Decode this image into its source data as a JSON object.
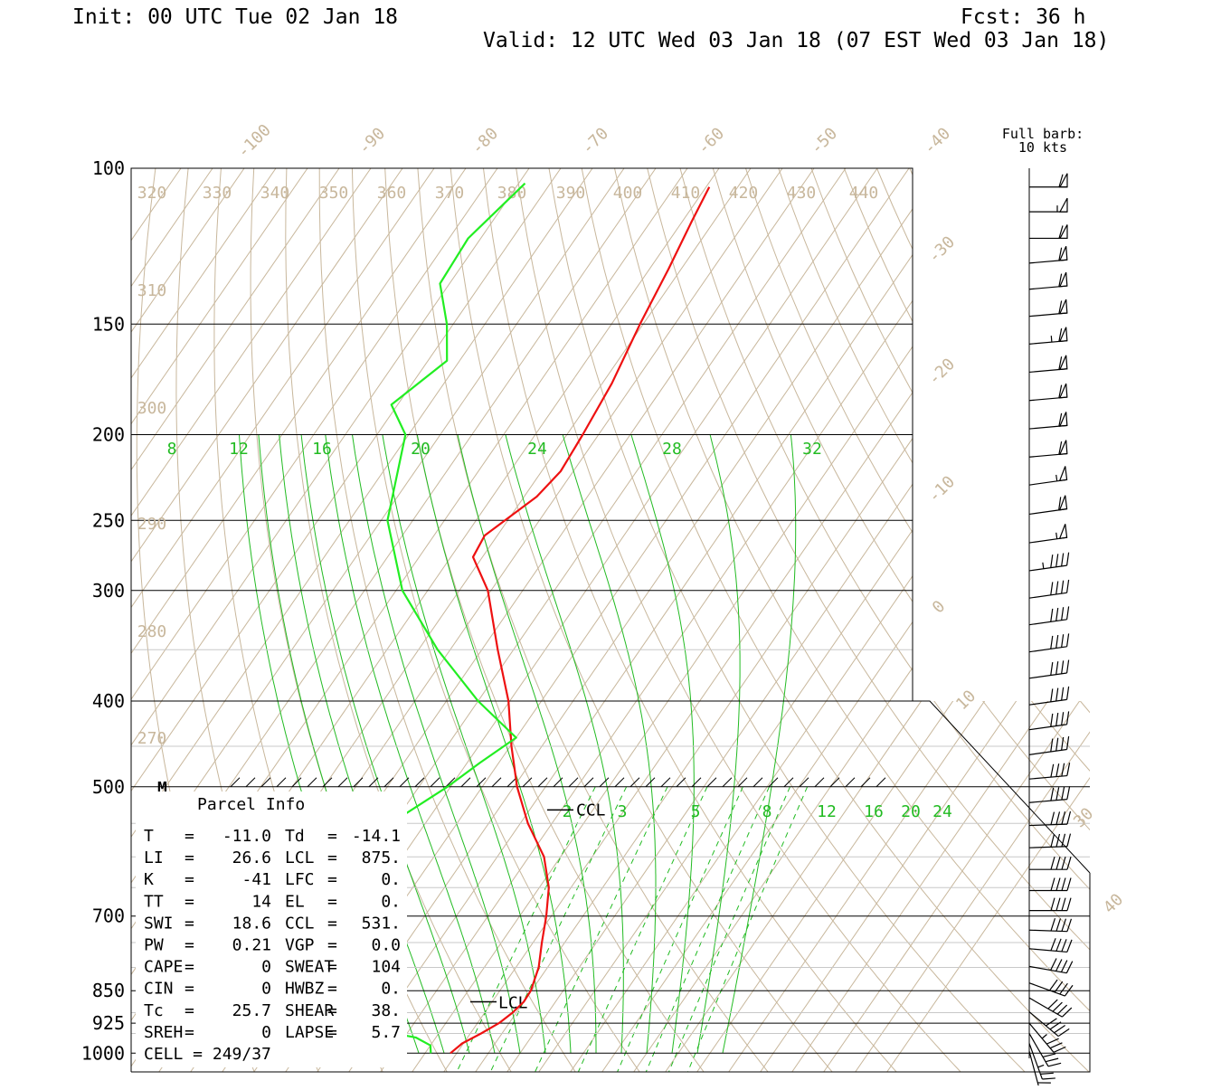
{
  "header": {
    "init": "Init: 00 UTC Tue 02 Jan 18",
    "fcst": "Fcst:   36 h",
    "valid": "Valid: 12 UTC Wed 03 Jan 18 (07 EST Wed 03 Jan 18)"
  },
  "barb_key": {
    "line1": "Full barb:",
    "line2": "10 kts"
  },
  "chart_data": {
    "type": "line",
    "title": "",
    "xlabel": "",
    "ylabel": "",
    "pressure_ticks": [
      {
        "p": 100,
        "label": "100"
      },
      {
        "p": 150,
        "label": "150"
      },
      {
        "p": 200,
        "label": "200"
      },
      {
        "p": 250,
        "label": "250"
      },
      {
        "p": 300,
        "label": "300"
      },
      {
        "p": 400,
        "label": "400"
      },
      {
        "p": 500,
        "label": "500"
      },
      {
        "p": 700,
        "label": "700"
      },
      {
        "p": 850,
        "label": "850"
      },
      {
        "p": 925,
        "label": "925"
      },
      {
        "p": 1000,
        "label": "1000"
      }
    ],
    "ylim_hPa": [
      1000,
      100
    ],
    "y_scale": "log",
    "isotherm_labels": [
      "-100",
      "-90",
      "-80",
      "-70",
      "-60",
      "-50",
      "-40",
      "-30",
      "-20",
      "-10",
      "0",
      "10",
      "30",
      "40"
    ],
    "theta_labels": [
      "320",
      "330",
      "340",
      "350",
      "360",
      "370",
      "380",
      "390",
      "400",
      "410",
      "420",
      "430",
      "440",
      "310",
      "300",
      "290",
      "280",
      "270"
    ],
    "moist_adiabat_labels": [
      "8",
      "12",
      "16",
      "20",
      "24",
      "28",
      "32"
    ],
    "mixing_ratio_labels": [
      "2",
      "3",
      "5",
      "8",
      "12",
      "16",
      "20",
      "24"
    ],
    "series": [
      {
        "name": "temperature",
        "color": "#ee1111",
        "values": [
          {
            "p": 1000,
            "t": -11.0
          },
          {
            "p": 975,
            "t": -10.2
          },
          {
            "p": 950,
            "t": -8.3
          },
          {
            "p": 925,
            "t": -6.6
          },
          {
            "p": 900,
            "t": -5.6
          },
          {
            "p": 875,
            "t": -5.0
          },
          {
            "p": 850,
            "t": -5.1
          },
          {
            "p": 800,
            "t": -6.4
          },
          {
            "p": 750,
            "t": -8.6
          },
          {
            "p": 700,
            "t": -10.8
          },
          {
            "p": 650,
            "t": -13.5
          },
          {
            "p": 600,
            "t": -17.6
          },
          {
            "p": 550,
            "t": -23.8
          },
          {
            "p": 500,
            "t": -29.5
          },
          {
            "p": 450,
            "t": -34.8
          },
          {
            "p": 400,
            "t": -40.2
          },
          {
            "p": 350,
            "t": -47.5
          },
          {
            "p": 300,
            "t": -55.5
          },
          {
            "p": 275,
            "t": -61.5
          },
          {
            "p": 260,
            "t": -62.0
          },
          {
            "p": 235,
            "t": -58.0
          },
          {
            "p": 220,
            "t": -57.0
          },
          {
            "p": 200,
            "t": -57.5
          },
          {
            "p": 175,
            "t": -58.5
          },
          {
            "p": 150,
            "t": -60.5
          },
          {
            "p": 130,
            "t": -62.0
          },
          {
            "p": 115,
            "t": -63.5
          },
          {
            "p": 105,
            "t": -64.5
          }
        ]
      },
      {
        "name": "dewpoint",
        "color": "#22ee22",
        "values": [
          {
            "p": 1000,
            "t": -14.1
          },
          {
            "p": 980,
            "t": -15.0
          },
          {
            "p": 960,
            "t": -18.2
          },
          {
            "p": 940,
            "t": -26.0
          },
          {
            "p": 925,
            "t": -28.5
          },
          {
            "p": 880,
            "t": -33.5
          },
          {
            "p": 850,
            "t": -37.2
          },
          {
            "p": 800,
            "t": -37.5
          },
          {
            "p": 750,
            "t": -41.5
          },
          {
            "p": 700,
            "t": -47.0
          },
          {
            "p": 650,
            "t": -51.5
          },
          {
            "p": 610,
            "t": -53.0
          },
          {
            "p": 550,
            "t": -45.5
          },
          {
            "p": 500,
            "t": -40.5
          },
          {
            "p": 470,
            "t": -38.0
          },
          {
            "p": 440,
            "t": -35.0
          },
          {
            "p": 400,
            "t": -45.0
          },
          {
            "p": 350,
            "t": -57.0
          },
          {
            "p": 300,
            "t": -69.0
          },
          {
            "p": 250,
            "t": -79.0
          },
          {
            "p": 200,
            "t": -85.5
          },
          {
            "p": 185,
            "t": -91.0
          },
          {
            "p": 165,
            "t": -87.0
          },
          {
            "p": 150,
            "t": -91.0
          },
          {
            "p": 135,
            "t": -96.5
          },
          {
            "p": 120,
            "t": -97.0
          },
          {
            "p": 104,
            "t": -94.0
          }
        ]
      }
    ],
    "levels_marked": [
      {
        "label": "LCL",
        "p": 875
      },
      {
        "label": "CCL",
        "p": 531
      },
      {
        "label": "M",
        "p": 500
      }
    ],
    "wind_barbs": [
      {
        "p": 105,
        "dir": 270,
        "kt": 60
      },
      {
        "p": 112,
        "dir": 270,
        "kt": 55
      },
      {
        "p": 120,
        "dir": 270,
        "kt": 60
      },
      {
        "p": 128,
        "dir": 265,
        "kt": 60
      },
      {
        "p": 137,
        "dir": 265,
        "kt": 60
      },
      {
        "p": 147,
        "dir": 265,
        "kt": 60
      },
      {
        "p": 158,
        "dir": 265,
        "kt": 65
      },
      {
        "p": 170,
        "dir": 265,
        "kt": 60
      },
      {
        "p": 183,
        "dir": 265,
        "kt": 60
      },
      {
        "p": 197,
        "dir": 265,
        "kt": 60
      },
      {
        "p": 212,
        "dir": 265,
        "kt": 60
      },
      {
        "p": 228,
        "dir": 262,
        "kt": 55
      },
      {
        "p": 246,
        "dir": 262,
        "kt": 60
      },
      {
        "p": 265,
        "dir": 262,
        "kt": 55
      },
      {
        "p": 285,
        "dir": 262,
        "kt": 45
      },
      {
        "p": 306,
        "dir": 262,
        "kt": 40
      },
      {
        "p": 328,
        "dir": 262,
        "kt": 40
      },
      {
        "p": 352,
        "dir": 262,
        "kt": 40
      },
      {
        "p": 377,
        "dir": 262,
        "kt": 40
      },
      {
        "p": 404,
        "dir": 262,
        "kt": 40
      },
      {
        "p": 431,
        "dir": 262,
        "kt": 40
      },
      {
        "p": 460,
        "dir": 262,
        "kt": 40
      },
      {
        "p": 490,
        "dir": 265,
        "kt": 40
      },
      {
        "p": 521,
        "dir": 265,
        "kt": 40
      },
      {
        "p": 553,
        "dir": 268,
        "kt": 40
      },
      {
        "p": 586,
        "dir": 268,
        "kt": 40
      },
      {
        "p": 620,
        "dir": 270,
        "kt": 40
      },
      {
        "p": 655,
        "dir": 270,
        "kt": 40
      },
      {
        "p": 690,
        "dir": 270,
        "kt": 40
      },
      {
        "p": 726,
        "dir": 272,
        "kt": 40
      },
      {
        "p": 762,
        "dir": 275,
        "kt": 40
      },
      {
        "p": 798,
        "dir": 280,
        "kt": 40
      },
      {
        "p": 833,
        "dir": 290,
        "kt": 40
      },
      {
        "p": 866,
        "dir": 300,
        "kt": 40
      },
      {
        "p": 898,
        "dir": 310,
        "kt": 40
      },
      {
        "p": 925,
        "dir": 320,
        "kt": 35
      },
      {
        "p": 950,
        "dir": 330,
        "kt": 30
      },
      {
        "p": 975,
        "dir": 340,
        "kt": 25
      },
      {
        "p": 995,
        "dir": 345,
        "kt": 20
      }
    ]
  },
  "parcel_info": {
    "title": "Parcel Info",
    "rows": [
      {
        "k1": "T",
        "v1": "-11.0",
        "k2": "Td",
        "v2": "-14.1"
      },
      {
        "k1": "LI",
        "v1": "26.6",
        "k2": "LCL",
        "v2": "875."
      },
      {
        "k1": "K",
        "v1": "-41",
        "k2": "LFC",
        "v2": "0."
      },
      {
        "k1": "TT",
        "v1": "14",
        "k2": "EL",
        "v2": "0."
      },
      {
        "k1": "SWI",
        "v1": "18.6",
        "k2": "CCL",
        "v2": "531."
      },
      {
        "k1": "PW",
        "v1": "0.21",
        "k2": "VGP",
        "v2": "0.0"
      },
      {
        "k1": "CAPE",
        "v1": "0",
        "k2": "SWEAT",
        "v2": "104"
      },
      {
        "k1": "CIN",
        "v1": "0",
        "k2": "HWBZ",
        "v2": "0."
      },
      {
        "k1": "Tc",
        "v1": "25.7",
        "k2": "SHEAR",
        "v2": "38."
      },
      {
        "k1": "SREH",
        "v1": "0",
        "k2": "LAPSE",
        "v2": "5.7"
      }
    ],
    "cell": "CELL = 249/37"
  }
}
